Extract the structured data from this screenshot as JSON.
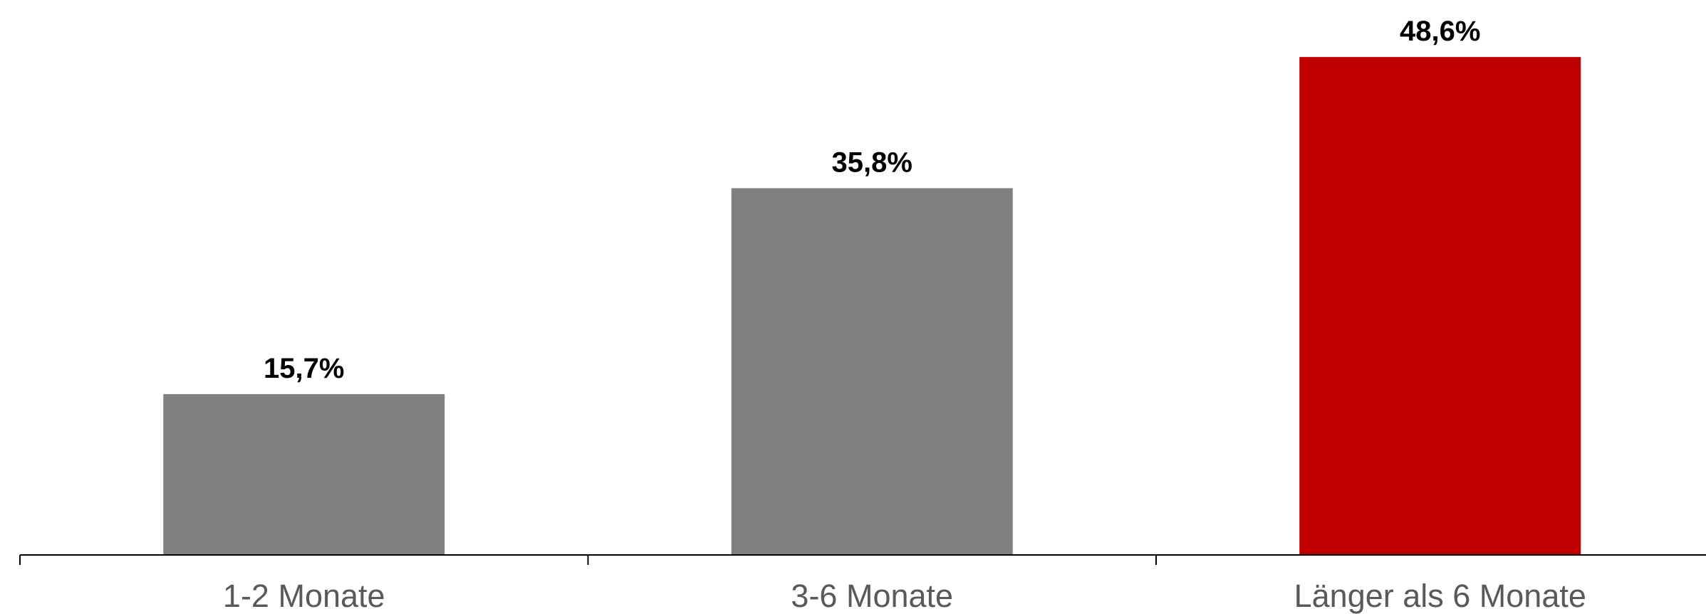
{
  "chart_data": {
    "type": "bar",
    "categories": [
      "1-2 Monate",
      "3-6 Monate",
      "Länger als 6 Monate"
    ],
    "values": [
      15.7,
      35.8,
      48.6
    ],
    "value_labels": [
      "15,7%",
      "35,8%",
      "48,6%"
    ],
    "bar_colors": [
      "#808080",
      "#808080",
      "#C00000"
    ],
    "label_color": "#000000",
    "category_label_color": "#595959",
    "title": "",
    "xlabel": "",
    "ylabel": "",
    "ylim": [
      0,
      50
    ],
    "grid": false,
    "legend": "none"
  }
}
